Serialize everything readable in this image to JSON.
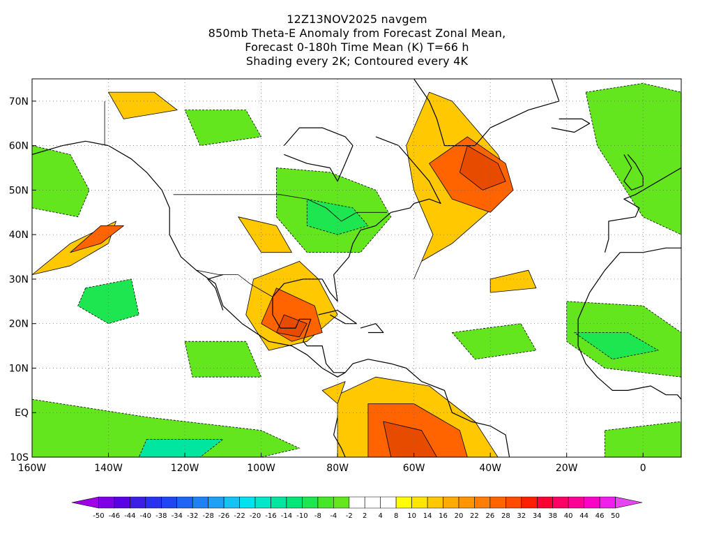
{
  "title_lines": [
    "12Z13NOV2025 navgem",
    "850mb Theta-E Anomaly from Forecast Zonal Mean,",
    "Forecast 0-180h Time Mean (K) T=66 h",
    "Shading every 2K; Contoured every 4K"
  ],
  "map": {
    "lon_range": [
      -160,
      10
    ],
    "lat_range": [
      -10,
      75
    ],
    "x_ticks": [
      {
        "lon": -160,
        "label": "160W"
      },
      {
        "lon": -140,
        "label": "140W"
      },
      {
        "lon": -120,
        "label": "120W"
      },
      {
        "lon": -100,
        "label": "100W"
      },
      {
        "lon": -80,
        "label": "80W"
      },
      {
        "lon": -60,
        "label": "60W"
      },
      {
        "lon": -40,
        "label": "40W"
      },
      {
        "lon": -20,
        "label": "20W"
      },
      {
        "lon": 0,
        "label": "0"
      }
    ],
    "y_ticks": [
      {
        "lat": -10,
        "label": "10S"
      },
      {
        "lat": 0,
        "label": "EQ"
      },
      {
        "lat": 10,
        "label": "10N"
      },
      {
        "lat": 20,
        "label": "20N"
      },
      {
        "lat": 30,
        "label": "30N"
      },
      {
        "lat": 40,
        "label": "40N"
      },
      {
        "lat": 50,
        "label": "50N"
      },
      {
        "lat": 60,
        "label": "60N"
      },
      {
        "lat": 70,
        "label": "70N"
      }
    ],
    "grid": "dotted"
  },
  "colorbar": {
    "labels": [
      "-50",
      "-46",
      "-44",
      "-40",
      "-38",
      "-34",
      "-32",
      "-28",
      "-26",
      "-22",
      "-20",
      "-16",
      "-14",
      "-10",
      "-8",
      "-4",
      "-2",
      "2",
      "4",
      "8",
      "10",
      "14",
      "16",
      "20",
      "22",
      "26",
      "28",
      "32",
      "34",
      "38",
      "40",
      "44",
      "46",
      "50"
    ],
    "colors": [
      "#a000e6",
      "#7d00e6",
      "#5a00e6",
      "#3c1ee6",
      "#2832f0",
      "#1e46f5",
      "#1e64f5",
      "#1e82f5",
      "#1ea0f5",
      "#14c3f5",
      "#00e1f0",
      "#00e6c8",
      "#00e6a0",
      "#00e678",
      "#1ee650",
      "#46e628",
      "#64e61e",
      "#ffffff",
      "#ffffff",
      "#ffffff",
      "#ffff00",
      "#ffe600",
      "#ffc800",
      "#ffaa00",
      "#ff9600",
      "#ff7d00",
      "#ff6400",
      "#ff4b00",
      "#ff1e00",
      "#ff0032",
      "#ff0064",
      "#ff0096",
      "#ff00c8",
      "#f01eeb",
      "#e646f0"
    ]
  },
  "features": [
    {
      "type": "warm",
      "level": 2,
      "pts": [
        [
          -50,
          70
        ],
        [
          -38,
          58
        ],
        [
          -34,
          50
        ],
        [
          -50,
          38
        ],
        [
          -58,
          34
        ],
        [
          -60,
          30
        ],
        [
          -55,
          40
        ],
        [
          -60,
          50
        ],
        [
          -62,
          60
        ],
        [
          -56,
          72
        ]
      ]
    },
    {
      "type": "warm",
      "level": 4,
      "pts": [
        [
          -46,
          62
        ],
        [
          -36,
          56
        ],
        [
          -34,
          50
        ],
        [
          -40,
          45
        ],
        [
          -50,
          48
        ],
        [
          -56,
          56
        ]
      ]
    },
    {
      "type": "warm",
      "level": 6,
      "pts": [
        [
          -46,
          60
        ],
        [
          -38,
          56
        ],
        [
          -36,
          52
        ],
        [
          -42,
          50
        ],
        [
          -48,
          54
        ]
      ]
    },
    {
      "type": "warm",
      "level": 2,
      "pts": [
        [
          -90,
          34
        ],
        [
          -85,
          30
        ],
        [
          -80,
          22
        ],
        [
          -88,
          16
        ],
        [
          -98,
          14
        ],
        [
          -104,
          22
        ],
        [
          -102,
          30
        ]
      ]
    },
    {
      "type": "warm",
      "level": 4,
      "pts": [
        [
          -96,
          28
        ],
        [
          -86,
          24
        ],
        [
          -84,
          18
        ],
        [
          -92,
          16
        ],
        [
          -100,
          20
        ]
      ]
    },
    {
      "type": "warm",
      "level": 6,
      "pts": [
        [
          -94,
          22
        ],
        [
          -88,
          20
        ],
        [
          -90,
          17
        ],
        [
          -96,
          18
        ]
      ]
    },
    {
      "type": "warm",
      "level": 2,
      "pts": [
        [
          -80,
          4
        ],
        [
          -70,
          8
        ],
        [
          -56,
          6
        ],
        [
          -44,
          -2
        ],
        [
          -38,
          -10
        ],
        [
          -80,
          -10
        ]
      ]
    },
    {
      "type": "warm",
      "level": 4,
      "pts": [
        [
          -72,
          2
        ],
        [
          -60,
          2
        ],
        [
          -48,
          -4
        ],
        [
          -46,
          -10
        ],
        [
          -72,
          -10
        ]
      ]
    },
    {
      "type": "warm",
      "level": 6,
      "pts": [
        [
          -68,
          -2
        ],
        [
          -58,
          -4
        ],
        [
          -54,
          -10
        ],
        [
          -66,
          -10
        ]
      ]
    },
    {
      "type": "warm",
      "level": 2,
      "pts": [
        [
          -160,
          31
        ],
        [
          -150,
          38
        ],
        [
          -138,
          43
        ],
        [
          -140,
          38
        ],
        [
          -150,
          33
        ]
      ]
    },
    {
      "type": "warm",
      "level": 4,
      "pts": [
        [
          -150,
          36
        ],
        [
          -142,
          42
        ],
        [
          -136,
          42
        ],
        [
          -142,
          38
        ]
      ]
    },
    {
      "type": "warm",
      "level": 2,
      "pts": [
        [
          -140,
          72
        ],
        [
          -128,
          72
        ],
        [
          -122,
          68
        ],
        [
          -136,
          66
        ]
      ]
    },
    {
      "type": "warm",
      "level": 2,
      "pts": [
        [
          -106,
          44
        ],
        [
          -96,
          42
        ],
        [
          -92,
          36
        ],
        [
          -100,
          36
        ]
      ]
    },
    {
      "type": "warm",
      "level": 2,
      "pts": [
        [
          -40,
          30
        ],
        [
          -30,
          32
        ],
        [
          -28,
          28
        ],
        [
          -40,
          27
        ]
      ]
    },
    {
      "type": "warm",
      "level": 2,
      "pts": [
        [
          -84,
          5
        ],
        [
          -78,
          7
        ],
        [
          -80,
          2
        ]
      ]
    },
    {
      "type": "cool",
      "level": 1,
      "pts": [
        [
          -96,
          55
        ],
        [
          -82,
          54
        ],
        [
          -70,
          50
        ],
        [
          -66,
          44
        ],
        [
          -74,
          36
        ],
        [
          -88,
          36
        ],
        [
          -96,
          44
        ]
      ]
    },
    {
      "type": "cool",
      "level": 2,
      "pts": [
        [
          -88,
          48
        ],
        [
          -76,
          46
        ],
        [
          -72,
          42
        ],
        [
          -80,
          40
        ],
        [
          -88,
          42
        ]
      ]
    },
    {
      "type": "cool",
      "level": 1,
      "pts": [
        [
          -160,
          60
        ],
        [
          -150,
          58
        ],
        [
          -145,
          50
        ],
        [
          -148,
          44
        ],
        [
          -160,
          46
        ]
      ]
    },
    {
      "type": "cool",
      "level": 2,
      "pts": [
        [
          -146,
          28
        ],
        [
          -134,
          30
        ],
        [
          -132,
          22
        ],
        [
          -140,
          20
        ],
        [
          -148,
          24
        ]
      ]
    },
    {
      "type": "cool",
      "level": 1,
      "pts": [
        [
          -20,
          25
        ],
        [
          0,
          24
        ],
        [
          10,
          18
        ],
        [
          10,
          8
        ],
        [
          -10,
          10
        ],
        [
          -20,
          16
        ]
      ]
    },
    {
      "type": "cool",
      "level": 2,
      "pts": [
        [
          -18,
          18
        ],
        [
          -4,
          18
        ],
        [
          4,
          14
        ],
        [
          -8,
          12
        ]
      ]
    },
    {
      "type": "cool",
      "level": 1,
      "pts": [
        [
          -160,
          3
        ],
        [
          -130,
          -1
        ],
        [
          -100,
          -4
        ],
        [
          -90,
          -8
        ],
        [
          -100,
          -10
        ],
        [
          -160,
          -10
        ]
      ]
    },
    {
      "type": "cool",
      "level": 3,
      "pts": [
        [
          -130,
          -6
        ],
        [
          -110,
          -6
        ],
        [
          -116,
          -10
        ],
        [
          -132,
          -10
        ]
      ]
    },
    {
      "type": "cool",
      "level": 1,
      "pts": [
        [
          -15,
          72
        ],
        [
          0,
          74
        ],
        [
          10,
          72
        ],
        [
          10,
          40
        ],
        [
          0,
          44
        ],
        [
          -12,
          60
        ]
      ]
    },
    {
      "type": "cool",
      "level": 1,
      "pts": [
        [
          -10,
          -4
        ],
        [
          10,
          -2
        ],
        [
          10,
          -10
        ],
        [
          -10,
          -10
        ]
      ]
    },
    {
      "type": "cool",
      "level": 1,
      "pts": [
        [
          -120,
          68
        ],
        [
          -104,
          68
        ],
        [
          -100,
          62
        ],
        [
          -116,
          60
        ]
      ]
    },
    {
      "type": "cool",
      "level": 1,
      "pts": [
        [
          -120,
          16
        ],
        [
          -104,
          16
        ],
        [
          -100,
          8
        ],
        [
          -118,
          8
        ]
      ]
    },
    {
      "type": "cool",
      "level": 1,
      "pts": [
        [
          -50,
          18
        ],
        [
          -32,
          20
        ],
        [
          -28,
          14
        ],
        [
          -44,
          12
        ]
      ]
    }
  ]
}
